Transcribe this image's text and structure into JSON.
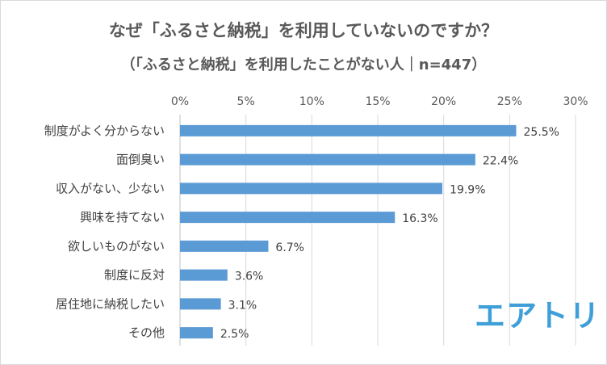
{
  "chart_data": {
    "type": "bar",
    "orientation": "horizontal",
    "title": "なぜ「ふるさと納税」を利用していないのですか？",
    "subtitle": "（「ふるさと納税」を利用したことがない人｜n=447）",
    "categories": [
      "制度がよく分からない",
      "面倒臭い",
      "収入がない、少ない",
      "興味を持てない",
      "欲しいものがない",
      "制度に反対",
      "居住地に納税したい",
      "その他"
    ],
    "values": [
      25.5,
      22.4,
      19.9,
      16.3,
      6.7,
      3.6,
      3.1,
      2.5
    ],
    "value_labels": [
      "25.5%",
      "22.4%",
      "19.9%",
      "16.3%",
      "6.7%",
      "3.6%",
      "3.1%",
      "2.5%"
    ],
    "xlim": [
      0,
      30
    ],
    "xticks": [
      0,
      5,
      10,
      15,
      20,
      25,
      30
    ],
    "xtick_labels": [
      "0%",
      "5%",
      "10%",
      "15%",
      "20%",
      "25%",
      "30%"
    ],
    "grid": "vertical",
    "axis_position": "top",
    "bar_color": "#5b9bd5"
  },
  "logo": {
    "text": "エアトリ",
    "color": "#3f9fd8"
  }
}
